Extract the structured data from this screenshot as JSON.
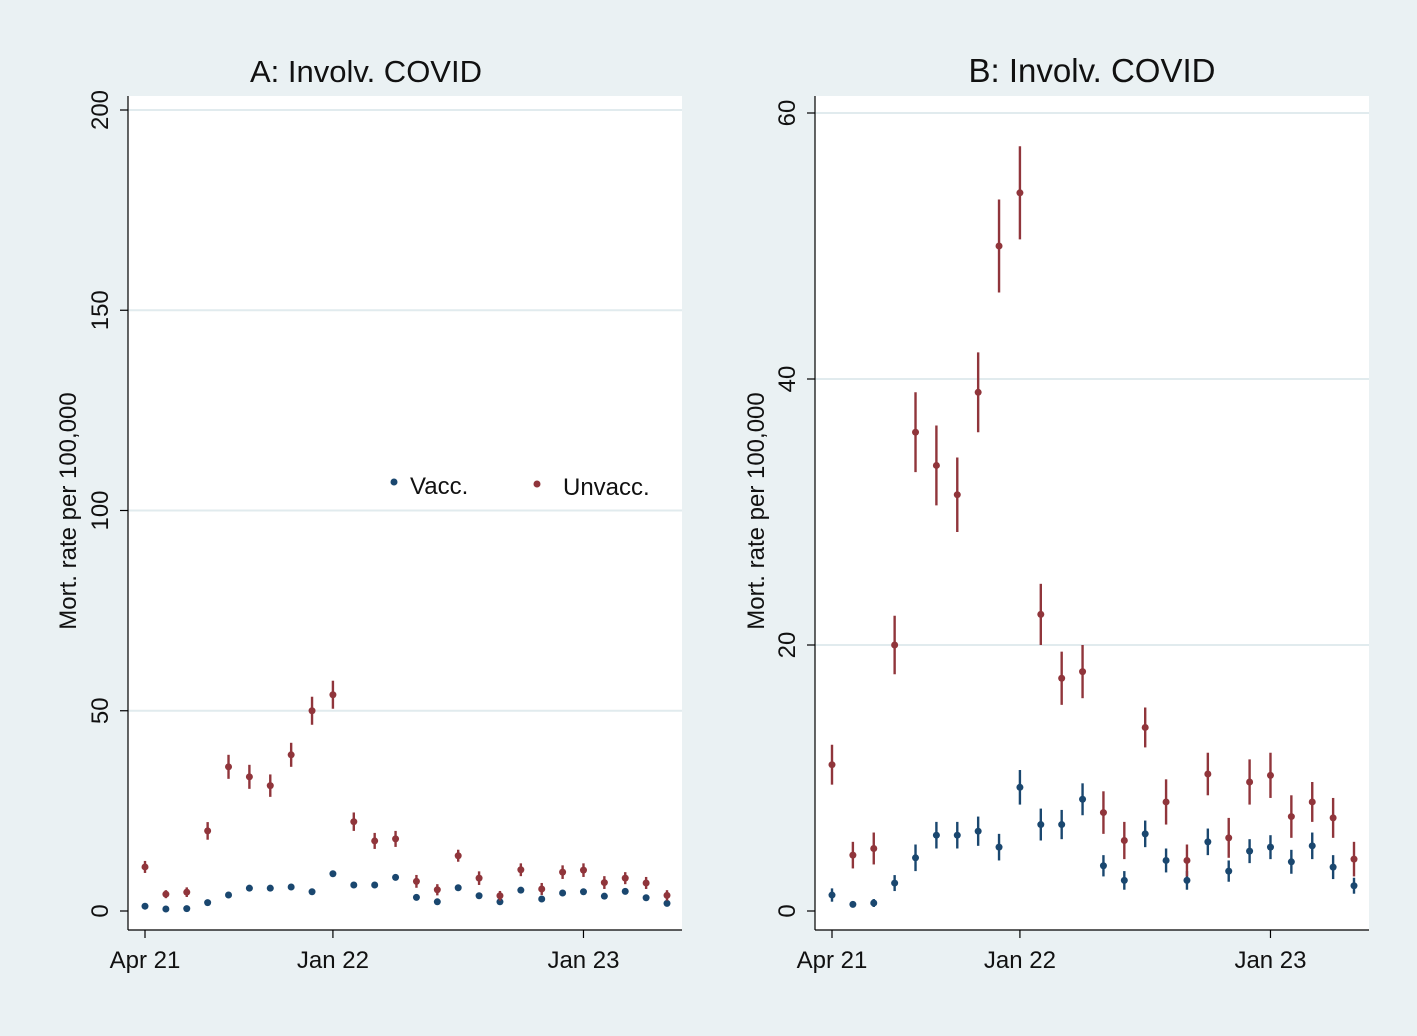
{
  "colors": {
    "background": "#eaf1f3",
    "plot_bg": "#ffffff",
    "grid": "#e1ebee",
    "vacc": "#1a476f",
    "unvacc": "#90353b"
  },
  "chart_data": [
    {
      "type": "scatter",
      "title": "A: Involv. COVID",
      "ylabel": "Mort. rate per 100,000",
      "ylim": [
        0,
        200
      ],
      "yticks": [
        0,
        50,
        100,
        150,
        200
      ],
      "ytick_labels": [
        "0",
        "50",
        "100",
        "150",
        "200"
      ],
      "xtick_labels": [
        "Apr 21",
        "Jan 22",
        "Jan 23"
      ],
      "grid": true,
      "legend": {
        "placement": "right-middle",
        "entries": [
          "Vacc.",
          "Unvacc."
        ]
      },
      "series": [
        {
          "name": "Vacc.",
          "x": [
            "Apr 21",
            "May 21",
            "Jun 21",
            "Jul 21",
            "Aug 21",
            "Sep 21",
            "Oct 21",
            "Nov 21",
            "Dec 21",
            "Jan 22",
            "Feb 22",
            "Mar 22",
            "Apr 22",
            "May 22",
            "Jun 22",
            "Jul 22",
            "Aug 22",
            "Sep 22",
            "Oct 22",
            "Nov 22",
            "Dec 22",
            "Jan 23",
            "Feb 23",
            "Mar 23",
            "Apr 23",
            "May 23"
          ],
          "values": [
            1.2,
            0.5,
            0.6,
            2.1,
            4.0,
            5.7,
            5.7,
            6.0,
            4.8,
            9.3,
            6.5,
            6.5,
            8.4,
            3.4,
            2.3,
            5.8,
            3.8,
            2.3,
            5.2,
            3.0,
            4.5,
            4.8,
            3.7,
            4.9,
            3.3,
            1.9
          ]
        },
        {
          "name": "Unvacc.",
          "x": [
            "Apr 21",
            "May 21",
            "Jun 21",
            "Jul 21",
            "Aug 21",
            "Sep 21",
            "Oct 21",
            "Nov 21",
            "Dec 21",
            "Jan 22",
            "Feb 22",
            "Mar 22",
            "Apr 22",
            "May 22",
            "Jun 22",
            "Jul 22",
            "Aug 22",
            "Sep 22",
            "Oct 22",
            "Nov 22",
            "Dec 22",
            "Jan 23",
            "Feb 23",
            "Mar 23",
            "Apr 23",
            "May 23"
          ],
          "values": [
            11,
            4.2,
            4.7,
            20,
            36,
            33.5,
            31.3,
            39,
            50,
            54,
            22.3,
            17.5,
            18,
            7.4,
            5.3,
            13.8,
            8.2,
            3.8,
            10.3,
            5.5,
            9.7,
            10.2,
            7.1,
            8.2,
            7.0,
            3.9
          ],
          "ci_low": [
            9.5,
            3.2,
            3.5,
            17.8,
            33.0,
            30.5,
            28.5,
            36.0,
            46.5,
            50.5,
            20.0,
            15.5,
            16.0,
            5.8,
            3.9,
            12.3,
            6.5,
            2.6,
            8.7,
            4.0,
            8.0,
            8.5,
            5.5,
            6.7,
            5.5,
            2.6
          ],
          "ci_high": [
            12.5,
            5.2,
            5.9,
            22.2,
            39.0,
            36.5,
            34.1,
            42.0,
            53.5,
            57.5,
            24.6,
            19.5,
            20.0,
            9.0,
            6.7,
            15.3,
            9.9,
            5.0,
            11.9,
            7.0,
            11.4,
            11.9,
            8.7,
            9.7,
            8.5,
            5.2
          ]
        }
      ]
    },
    {
      "type": "scatter",
      "title": "B: Involv. COVID",
      "ylabel": "Mort. rate per 100,000",
      "ylim": [
        0,
        60
      ],
      "yticks": [
        0,
        20,
        40,
        60
      ],
      "ytick_labels": [
        "0",
        "20",
        "40",
        "60"
      ],
      "xtick_labels": [
        "Apr 21",
        "Jan 22",
        "Jan 23"
      ],
      "grid": true,
      "series": [
        {
          "name": "Vacc.",
          "x": [
            "Apr 21",
            "May 21",
            "Jun 21",
            "Jul 21",
            "Aug 21",
            "Sep 21",
            "Oct 21",
            "Nov 21",
            "Dec 21",
            "Jan 22",
            "Feb 22",
            "Mar 22",
            "Apr 22",
            "May 22",
            "Jun 22",
            "Jul 22",
            "Aug 22",
            "Sep 22",
            "Oct 22",
            "Nov 22",
            "Dec 22",
            "Jan 23",
            "Feb 23",
            "Mar 23",
            "Apr 23",
            "May 23"
          ],
          "values": [
            1.2,
            0.5,
            0.6,
            2.1,
            4.0,
            5.7,
            5.7,
            6.0,
            4.8,
            9.3,
            6.5,
            6.5,
            8.4,
            3.4,
            2.3,
            5.8,
            3.8,
            2.3,
            5.2,
            3.0,
            4.5,
            4.8,
            3.7,
            4.9,
            3.3,
            1.9
          ],
          "ci_low": [
            0.7,
            0.3,
            0.3,
            1.5,
            3.0,
            4.7,
            4.7,
            4.9,
            3.8,
            8.0,
            5.3,
            5.4,
            7.2,
            2.6,
            1.6,
            4.8,
            2.9,
            1.6,
            4.2,
            2.2,
            3.6,
            3.9,
            2.8,
            3.9,
            2.4,
            1.3
          ],
          "ci_high": [
            1.7,
            0.7,
            0.9,
            2.7,
            5.0,
            6.7,
            6.7,
            7.1,
            5.8,
            10.6,
            7.7,
            7.6,
            9.6,
            4.2,
            3.0,
            6.8,
            4.7,
            3.0,
            6.2,
            3.8,
            5.4,
            5.7,
            4.6,
            5.9,
            4.2,
            2.5
          ]
        },
        {
          "name": "Unvacc.",
          "x": [
            "Apr 21",
            "May 21",
            "Jun 21",
            "Jul 21",
            "Aug 21",
            "Sep 21",
            "Oct 21",
            "Nov 21",
            "Dec 21",
            "Jan 22",
            "Feb 22",
            "Mar 22",
            "Apr 22",
            "May 22",
            "Jun 22",
            "Jul 22",
            "Aug 22",
            "Sep 22",
            "Oct 22",
            "Nov 22",
            "Dec 22",
            "Jan 23",
            "Feb 23",
            "Mar 23",
            "Apr 23",
            "May 23"
          ],
          "values": [
            11,
            4.2,
            4.7,
            20,
            36,
            33.5,
            31.3,
            39,
            50,
            54,
            22.3,
            17.5,
            18,
            7.4,
            5.3,
            13.8,
            8.2,
            3.8,
            10.3,
            5.5,
            9.7,
            10.2,
            7.1,
            8.2,
            7.0,
            3.9
          ],
          "ci_low": [
            9.5,
            3.2,
            3.5,
            17.8,
            33.0,
            30.5,
            28.5,
            36.0,
            46.5,
            50.5,
            20.0,
            15.5,
            16.0,
            5.8,
            3.9,
            12.3,
            6.5,
            2.6,
            8.7,
            4.0,
            8.0,
            8.5,
            5.5,
            6.7,
            5.5,
            2.6
          ],
          "ci_high": [
            12.5,
            5.2,
            5.9,
            22.2,
            39.0,
            36.5,
            34.1,
            42.0,
            53.5,
            57.5,
            24.6,
            19.5,
            20.0,
            9.0,
            6.7,
            15.3,
            9.9,
            5.0,
            11.9,
            7.0,
            11.4,
            11.9,
            8.7,
            9.7,
            8.5,
            5.2
          ]
        }
      ]
    }
  ]
}
